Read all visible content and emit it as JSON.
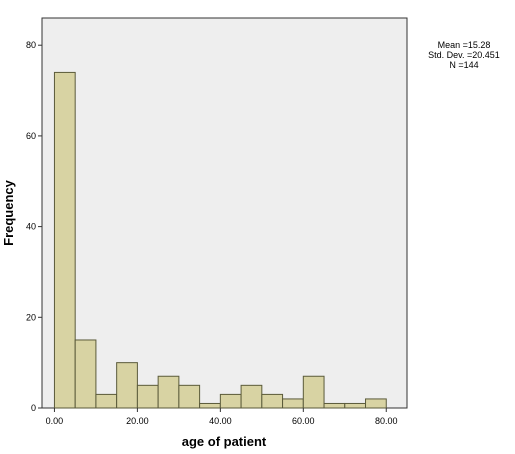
{
  "chart_data": {
    "type": "bar",
    "title": "",
    "xlabel": "age of patient",
    "ylabel": "Frequency",
    "bins": [
      {
        "start": 0,
        "end": 5,
        "count": 74
      },
      {
        "start": 5,
        "end": 10,
        "count": 15
      },
      {
        "start": 10,
        "end": 15,
        "count": 3
      },
      {
        "start": 15,
        "end": 20,
        "count": 10
      },
      {
        "start": 20,
        "end": 25,
        "count": 5
      },
      {
        "start": 25,
        "end": 30,
        "count": 7
      },
      {
        "start": 30,
        "end": 35,
        "count": 5
      },
      {
        "start": 35,
        "end": 40,
        "count": 1
      },
      {
        "start": 40,
        "end": 45,
        "count": 3
      },
      {
        "start": 45,
        "end": 50,
        "count": 5
      },
      {
        "start": 50,
        "end": 55,
        "count": 3
      },
      {
        "start": 55,
        "end": 60,
        "count": 2
      },
      {
        "start": 60,
        "end": 65,
        "count": 7
      },
      {
        "start": 65,
        "end": 70,
        "count": 1
      },
      {
        "start": 70,
        "end": 75,
        "count": 1
      },
      {
        "start": 75,
        "end": 80,
        "count": 2
      }
    ],
    "xlim": [
      -3,
      85
    ],
    "ylim": [
      0,
      86
    ],
    "xticks": [
      0,
      20,
      40,
      60,
      80
    ],
    "xtick_labels": [
      "0.00",
      "20.00",
      "40.00",
      "60.00",
      "80.00"
    ],
    "yticks": [
      0,
      20,
      40,
      60,
      80
    ],
    "ytick_labels": [
      "0",
      "20",
      "40",
      "60",
      "80"
    ],
    "grid": false,
    "bar_color": "#d8d3a3",
    "bar_edge_color": "#5a5a3a",
    "plot_background": "#eeeeee",
    "stats": {
      "mean": "Mean =15.28",
      "std_dev": "Std. Dev. =20.451",
      "n": "N =144"
    }
  }
}
